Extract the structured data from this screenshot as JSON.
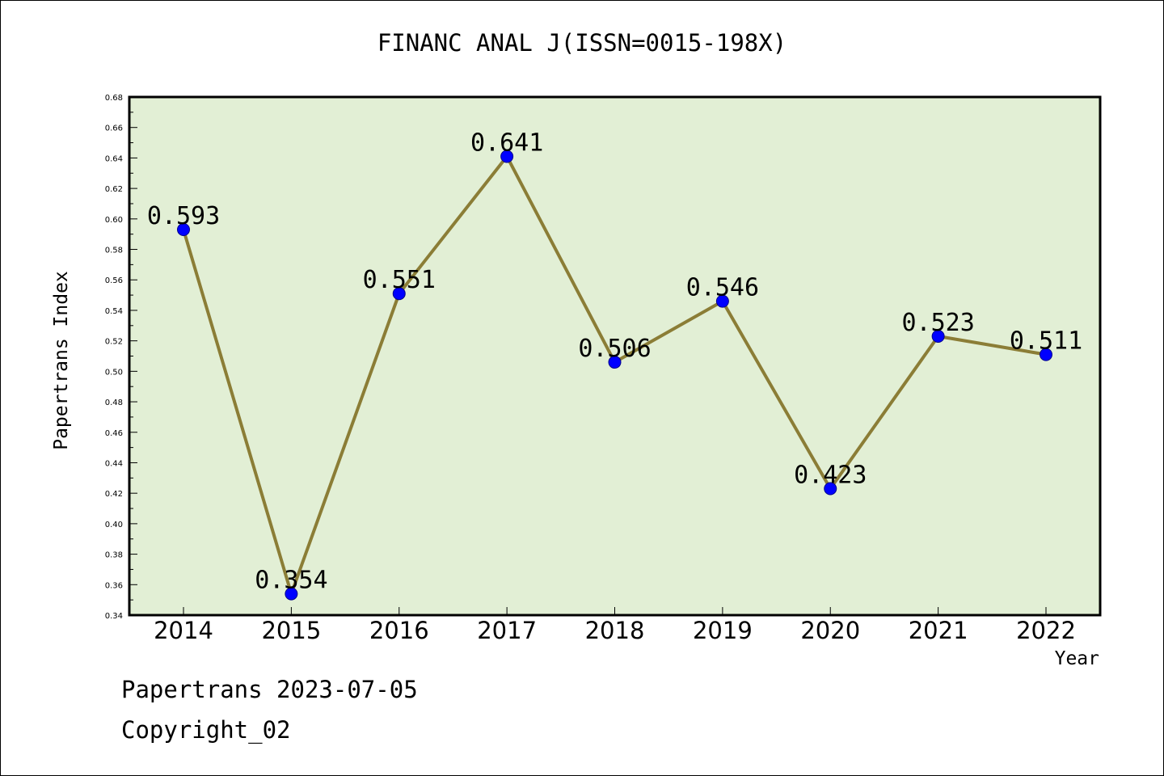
{
  "title": "FINANC ANAL J(ISSN=0015-198X)",
  "footer": {
    "line1": "Papertrans 2023-07-05",
    "line2": "Copyright_02"
  },
  "chart_data": {
    "type": "line",
    "title": "FINANC ANAL J(ISSN=0015-198X)",
    "xlabel": "Year",
    "ylabel": "Papertrans Index",
    "categories": [
      "2014",
      "2015",
      "2016",
      "2017",
      "2018",
      "2019",
      "2020",
      "2021",
      "2022"
    ],
    "series": [
      {
        "values": [
          0.593,
          0.354,
          0.551,
          0.641,
          0.506,
          0.546,
          0.423,
          0.523,
          0.511
        ]
      }
    ],
    "data_labels": [
      "0.593",
      "0.354",
      "0.551",
      "0.641",
      "0.506",
      "0.546",
      "0.423",
      "0.523",
      "0.511"
    ],
    "ylim": [
      0.34,
      0.68
    ],
    "yticks": [
      "0.34",
      "0.36",
      "0.38",
      "0.40",
      "0.42",
      "0.44",
      "0.46",
      "0.48",
      "0.50",
      "0.52",
      "0.54",
      "0.56",
      "0.58",
      "0.60",
      "0.62",
      "0.64",
      "0.66",
      "0.68"
    ],
    "grid": false,
    "colors": {
      "plot_bg": "#e2efd5",
      "line": "#8b7d36",
      "marker": "#0000ff",
      "border": "#000000"
    }
  }
}
